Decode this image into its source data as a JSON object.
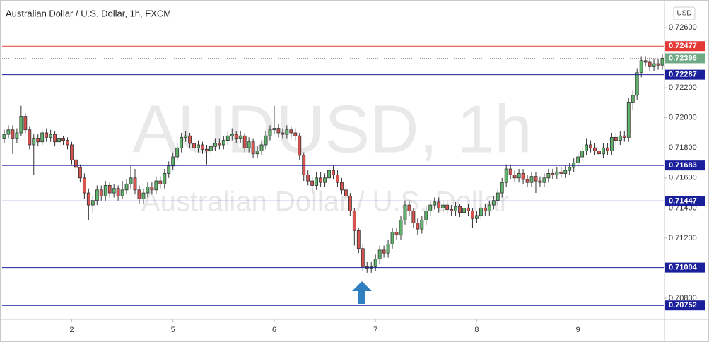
{
  "chart_data": {
    "type": "candlestick",
    "title": "Australian Dollar / U.S. Dollar, 1h, FXCM",
    "watermark": "AUDUSD, 1h",
    "watermark_subtitle": "Australian Dollar / U.S. Dollar",
    "currency": "USD",
    "up_color": "#5fb36b",
    "down_color": "#d9534f",
    "xlim": [
      -0.5,
      156.5
    ],
    "xticks": [
      {
        "value": 16,
        "label": "2"
      },
      {
        "value": 40,
        "label": "5"
      },
      {
        "value": 64,
        "label": "6"
      },
      {
        "value": 88,
        "label": "7"
      },
      {
        "value": 112,
        "label": "8"
      },
      {
        "value": 136,
        "label": "9"
      }
    ],
    "ylim": [
      0.70659,
      0.7276
    ],
    "yticks": [
      {
        "value": 0.708,
        "label": "0.70800"
      },
      {
        "value": 0.712,
        "label": "0.71200"
      },
      {
        "value": 0.714,
        "label": "0.71400"
      },
      {
        "value": 0.716,
        "label": "0.71600"
      },
      {
        "value": 0.718,
        "label": "0.71800"
      },
      {
        "value": 0.72,
        "label": "0.72000"
      },
      {
        "value": 0.722,
        "label": "0.72200"
      },
      {
        "value": 0.726,
        "label": "0.72600"
      }
    ],
    "levels": [
      {
        "value": 0.72477,
        "color": "#e53935"
      },
      {
        "value": 0.72287,
        "color": "#1a1f9c"
      },
      {
        "value": 0.71683,
        "color": "#1a1f9c"
      },
      {
        "value": 0.71447,
        "color": "#1a1f9c"
      },
      {
        "value": 0.71004,
        "color": "#1a1f9c"
      },
      {
        "value": 0.70752,
        "color": "#1a1f9c"
      }
    ],
    "last_price_color": "#6fa986",
    "open": [
      0.7186,
      0.7189,
      0.7192,
      0.7186,
      0.719,
      0.7201,
      0.7192,
      0.7182,
      0.7186,
      0.7184,
      0.719,
      0.7187,
      0.7189,
      0.7184,
      0.7186,
      0.7185,
      0.7182,
      0.7172,
      0.7167,
      0.716,
      0.715,
      0.7142,
      0.7145,
      0.7152,
      0.7148,
      0.7155,
      0.715,
      0.7153,
      0.7148,
      0.7152,
      0.7156,
      0.716,
      0.7152,
      0.7146,
      0.715,
      0.7154,
      0.7152,
      0.7158,
      0.7156,
      0.7163,
      0.7168,
      0.7174,
      0.718,
      0.7187,
      0.7188,
      0.7183,
      0.718,
      0.7182,
      0.7179,
      0.7178,
      0.7181,
      0.7183,
      0.7182,
      0.7185,
      0.7188,
      0.7189,
      0.7186,
      0.7188,
      0.718,
      0.7184,
      0.7176,
      0.7178,
      0.7182,
      0.7188,
      0.7192,
      0.7193,
      0.719,
      0.7189,
      0.7192,
      0.719,
      0.7188,
      0.7175,
      0.7162,
      0.7158,
      0.7155,
      0.716,
      0.7157,
      0.716,
      0.7165,
      0.7162,
      0.7157,
      0.7152,
      0.7148,
      0.7138,
      0.7125,
      0.7113,
      0.7101,
      0.71,
      0.7101,
      0.7106,
      0.7112,
      0.711,
      0.7116,
      0.7124,
      0.7122,
      0.7132,
      0.7142,
      0.7138,
      0.713,
      0.7126,
      0.7132,
      0.7138,
      0.7142,
      0.7144,
      0.714,
      0.7142,
      0.7139,
      0.7138,
      0.7141,
      0.7137,
      0.714,
      0.7138,
      0.7133,
      0.7135,
      0.714,
      0.7138,
      0.7142,
      0.7145,
      0.715,
      0.7157,
      0.7166,
      0.7162,
      0.716,
      0.7163,
      0.7159,
      0.7157,
      0.7161,
      0.7158,
      0.7157,
      0.716,
      0.7163,
      0.7162,
      0.7164,
      0.7163,
      0.7165,
      0.7167,
      0.717,
      0.7174,
      0.7178,
      0.7182,
      0.718,
      0.7178,
      0.7176,
      0.718,
      0.7178,
      0.7187,
      0.7185,
      0.7188,
      0.7187,
      0.721,
      0.7215,
      0.723,
      0.7238,
      0.7237,
      0.7234,
      0.7236,
      0.7235
    ],
    "high": [
      0.7192,
      0.7195,
      0.7195,
      0.7193,
      0.7208,
      0.7203,
      0.7194,
      0.7189,
      0.7189,
      0.7192,
      0.7193,
      0.7192,
      0.7191,
      0.7189,
      0.7188,
      0.7187,
      0.7184,
      0.7174,
      0.7169,
      0.7163,
      0.7153,
      0.7148,
      0.7155,
      0.7155,
      0.7158,
      0.7157,
      0.7156,
      0.7155,
      0.7158,
      0.7159,
      0.7168,
      0.7166,
      0.7155,
      0.7153,
      0.7157,
      0.7157,
      0.7161,
      0.7161,
      0.7166,
      0.7171,
      0.7177,
      0.7183,
      0.719,
      0.7191,
      0.719,
      0.7186,
      0.7185,
      0.7184,
      0.7182,
      0.7184,
      0.7186,
      0.7186,
      0.7188,
      0.7191,
      0.7193,
      0.7191,
      0.7191,
      0.719,
      0.7187,
      0.7186,
      0.7181,
      0.7185,
      0.7191,
      0.7195,
      0.7208,
      0.7196,
      0.7193,
      0.7195,
      0.7194,
      0.7193,
      0.719,
      0.7177,
      0.7165,
      0.7161,
      0.7164,
      0.7164,
      0.7163,
      0.7168,
      0.7168,
      0.7165,
      0.716,
      0.7155,
      0.715,
      0.714,
      0.7127,
      0.7116,
      0.7104,
      0.7104,
      0.7109,
      0.7115,
      0.7115,
      0.7119,
      0.7127,
      0.7127,
      0.7135,
      0.7145,
      0.7145,
      0.714,
      0.7133,
      0.7135,
      0.7141,
      0.7145,
      0.7147,
      0.7147,
      0.7145,
      0.7145,
      0.7142,
      0.7144,
      0.7143,
      0.7143,
      0.7143,
      0.714,
      0.7138,
      0.7143,
      0.7143,
      0.7145,
      0.7148,
      0.7153,
      0.716,
      0.7169,
      0.7169,
      0.7165,
      0.7166,
      0.7166,
      0.7162,
      0.7164,
      0.7164,
      0.7161,
      0.7163,
      0.7166,
      0.7166,
      0.7167,
      0.7167,
      0.7168,
      0.717,
      0.7173,
      0.7177,
      0.7181,
      0.7186,
      0.7185,
      0.7183,
      0.7181,
      0.7183,
      0.7183,
      0.719,
      0.719,
      0.7191,
      0.7191,
      0.7213,
      0.7218,
      0.7233,
      0.7241,
      0.7241,
      0.724,
      0.7239,
      0.7239,
      0.7242
    ],
    "low": [
      0.7183,
      0.7186,
      0.7176,
      0.7183,
      0.7188,
      0.7189,
      0.7179,
      0.7162,
      0.7181,
      0.7182,
      0.7184,
      0.7184,
      0.7181,
      0.7181,
      0.7182,
      0.7179,
      0.7169,
      0.7163,
      0.7157,
      0.7146,
      0.7132,
      0.7137,
      0.7142,
      0.7145,
      0.7145,
      0.7147,
      0.7147,
      0.7145,
      0.7146,
      0.7149,
      0.7153,
      0.7149,
      0.7143,
      0.7143,
      0.7147,
      0.7149,
      0.7149,
      0.7153,
      0.7153,
      0.716,
      0.7165,
      0.7171,
      0.7177,
      0.7184,
      0.718,
      0.7177,
      0.7177,
      0.7176,
      0.7169,
      0.7175,
      0.7178,
      0.7179,
      0.7179,
      0.7182,
      0.7185,
      0.7183,
      0.7183,
      0.7177,
      0.7177,
      0.7173,
      0.7173,
      0.7175,
      0.7179,
      0.7185,
      0.7189,
      0.7187,
      0.7186,
      0.7186,
      0.7187,
      0.7185,
      0.7172,
      0.7158,
      0.7155,
      0.715,
      0.7152,
      0.7154,
      0.7154,
      0.7157,
      0.7159,
      0.7154,
      0.7149,
      0.7145,
      0.7135,
      0.7115,
      0.711,
      0.7098,
      0.7097,
      0.7097,
      0.7098,
      0.7103,
      0.7107,
      0.7107,
      0.7113,
      0.7119,
      0.7119,
      0.7129,
      0.7135,
      0.7127,
      0.7122,
      0.7123,
      0.7129,
      0.7135,
      0.7139,
      0.7137,
      0.7137,
      0.7136,
      0.7135,
      0.7135,
      0.7134,
      0.7134,
      0.7135,
      0.7127,
      0.713,
      0.7132,
      0.7135,
      0.7135,
      0.7139,
      0.7142,
      0.7147,
      0.7154,
      0.7159,
      0.7157,
      0.7157,
      0.7156,
      0.7154,
      0.7154,
      0.715,
      0.7154,
      0.7154,
      0.7157,
      0.7159,
      0.7159,
      0.716,
      0.716,
      0.7162,
      0.7164,
      0.7167,
      0.7171,
      0.7175,
      0.7177,
      0.7175,
      0.7173,
      0.7173,
      0.7175,
      0.7175,
      0.7182,
      0.7182,
      0.7184,
      0.7184,
      0.7205,
      0.7212,
      0.7227,
      0.7234,
      0.7231,
      0.7231,
      0.7232,
      0.7232
    ],
    "close": [
      0.7189,
      0.7192,
      0.7186,
      0.719,
      0.7201,
      0.7192,
      0.7182,
      0.7186,
      0.7184,
      0.719,
      0.7187,
      0.7189,
      0.7184,
      0.7186,
      0.7185,
      0.7182,
      0.7172,
      0.7167,
      0.716,
      0.715,
      0.7142,
      0.7145,
      0.7152,
      0.7148,
      0.7155,
      0.715,
      0.7153,
      0.7148,
      0.7152,
      0.7156,
      0.716,
      0.7152,
      0.7146,
      0.715,
      0.7154,
      0.7152,
      0.7158,
      0.7156,
      0.7163,
      0.7168,
      0.7174,
      0.718,
      0.7187,
      0.7188,
      0.7183,
      0.718,
      0.7182,
      0.7179,
      0.7178,
      0.7181,
      0.7183,
      0.7182,
      0.7185,
      0.7188,
      0.7189,
      0.7186,
      0.7188,
      0.718,
      0.7184,
      0.7176,
      0.7178,
      0.7182,
      0.7188,
      0.7192,
      0.7193,
      0.719,
      0.7189,
      0.7192,
      0.719,
      0.7188,
      0.7175,
      0.7162,
      0.7158,
      0.7155,
      0.716,
      0.7157,
      0.716,
      0.7165,
      0.7162,
      0.7157,
      0.7152,
      0.7148,
      0.7138,
      0.7125,
      0.7113,
      0.7101,
      0.71,
      0.7101,
      0.7106,
      0.7112,
      0.711,
      0.7116,
      0.7124,
      0.7122,
      0.7132,
      0.7142,
      0.7138,
      0.713,
      0.7126,
      0.7132,
      0.7138,
      0.7142,
      0.7144,
      0.714,
      0.7142,
      0.7139,
      0.7138,
      0.7141,
      0.7137,
      0.714,
      0.7138,
      0.7133,
      0.7135,
      0.714,
      0.7138,
      0.7142,
      0.7145,
      0.715,
      0.7157,
      0.7166,
      0.7162,
      0.716,
      0.7163,
      0.7159,
      0.7157,
      0.7161,
      0.7158,
      0.7157,
      0.716,
      0.7163,
      0.7162,
      0.7164,
      0.7163,
      0.7165,
      0.7167,
      0.717,
      0.7174,
      0.7178,
      0.7182,
      0.718,
      0.7178,
      0.7176,
      0.718,
      0.7178,
      0.7187,
      0.7185,
      0.7188,
      0.7187,
      0.721,
      0.7215,
      0.723,
      0.7238,
      0.7237,
      0.7234,
      0.7236,
      0.7235,
      0.72396
    ]
  }
}
